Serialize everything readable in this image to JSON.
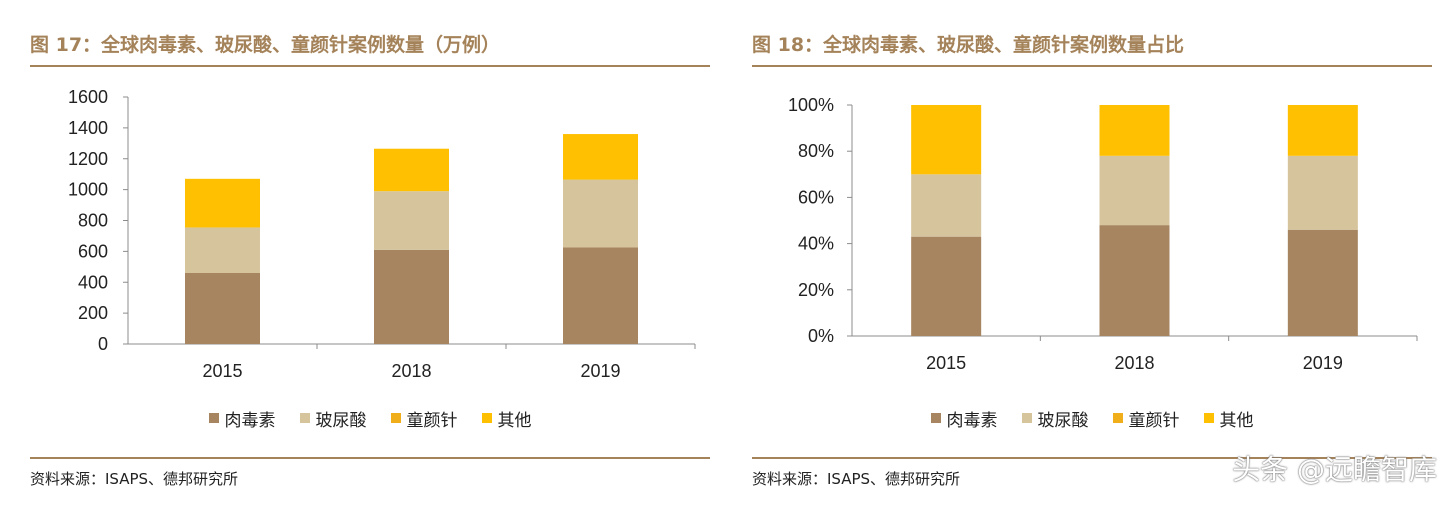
{
  "colors": {
    "accent": "#a5835a",
    "series": [
      "#a78560",
      "#d5c49c",
      "#f0ae1a",
      "#fec000"
    ]
  },
  "left": {
    "title": "图 17：全球肉毒素、玻尿酸、童颜针案例数量（万例）",
    "source": "资料来源：ISAPS、德邦研究所"
  },
  "right": {
    "title": "图 18：全球肉毒素、玻尿酸、童颜针案例数量占比",
    "source": "资料来源：ISAPS、德邦研究所"
  },
  "legend": [
    "肉毒素",
    "玻尿酸",
    "童颜针",
    "其他"
  ],
  "watermark": "头条 @远瞻智库",
  "chart_data": [
    {
      "type": "bar",
      "stacked": true,
      "title": "图 17：全球肉毒素、玻尿酸、童颜针案例数量（万例）",
      "categories": [
        "2015",
        "2018",
        "2019"
      ],
      "series": [
        {
          "name": "肉毒素",
          "values": [
            460,
            610,
            625
          ]
        },
        {
          "name": "玻尿酸",
          "values": [
            295,
            380,
            440
          ]
        },
        {
          "name": "童颜针",
          "values": [
            0,
            0,
            0
          ]
        },
        {
          "name": "其他",
          "values": [
            315,
            275,
            295
          ]
        }
      ],
      "ylim": [
        0,
        1600
      ],
      "yticks": [
        "0",
        "200",
        "400",
        "600",
        "800",
        "1000",
        "1200",
        "1400",
        "1600"
      ],
      "legend_position": "bottom",
      "grid": false
    },
    {
      "type": "bar",
      "stacked": true,
      "title": "图 18：全球肉毒素、玻尿酸、童颜针案例数量占比",
      "categories": [
        "2015",
        "2018",
        "2019"
      ],
      "series": [
        {
          "name": "肉毒素",
          "values": [
            43,
            48,
            46
          ]
        },
        {
          "name": "玻尿酸",
          "values": [
            27,
            30,
            32
          ]
        },
        {
          "name": "童颜针",
          "values": [
            0,
            0,
            0
          ]
        },
        {
          "name": "其他",
          "values": [
            30,
            22,
            22
          ]
        }
      ],
      "ylim": [
        0,
        100
      ],
      "yticks": [
        "0%",
        "20%",
        "40%",
        "60%",
        "80%",
        "100%"
      ],
      "legend_position": "bottom",
      "grid": false
    }
  ]
}
